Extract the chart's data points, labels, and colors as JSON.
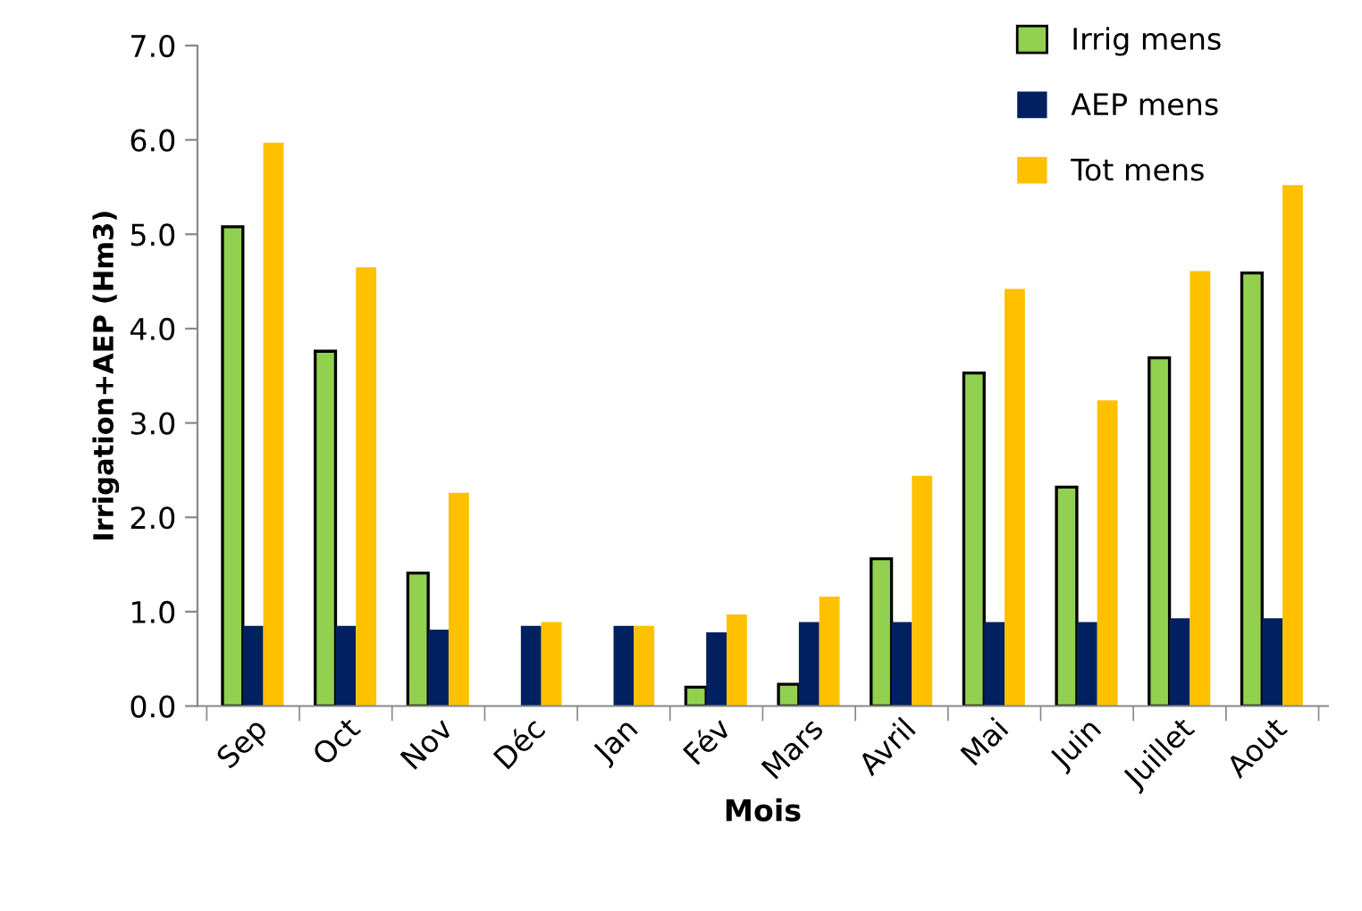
{
  "chart_data": {
    "type": "bar",
    "xlabel": "Mois",
    "ylabel": "Irrigation+AEP (Hm3)",
    "categories": [
      "Sep",
      "Oct",
      "Nov",
      "Déc",
      "Jan",
      "Fév",
      "Mars",
      "Avril",
      "Mai",
      "Juin",
      "Juillet",
      "Aout"
    ],
    "series": [
      {
        "name": "Irrig mens",
        "color": "#92d050",
        "values": [
          5.08,
          3.76,
          1.41,
          0,
          0,
          0.2,
          0.23,
          1.56,
          3.53,
          2.32,
          3.69,
          4.59
        ]
      },
      {
        "name": "AEP mens",
        "color": "#002060",
        "values": [
          0.85,
          0.85,
          0.81,
          0.85,
          0.85,
          0.78,
          0.89,
          0.89,
          0.89,
          0.89,
          0.93,
          0.93
        ]
      },
      {
        "name": "Tot mens",
        "color": "#ffc000",
        "values": [
          5.97,
          4.65,
          2.26,
          0.89,
          0.85,
          0.97,
          1.16,
          2.44,
          4.42,
          3.24,
          4.61,
          5.52
        ]
      }
    ],
    "ylim": [
      0,
      7
    ],
    "yticks": [
      {
        "value": 0,
        "label": "0.0"
      },
      {
        "value": 1,
        "label": "1.0"
      },
      {
        "value": 2,
        "label": "2.0"
      },
      {
        "value": 3,
        "label": "3.0"
      },
      {
        "value": 4,
        "label": "4.0"
      },
      {
        "value": 5,
        "label": "5.0"
      },
      {
        "value": 6,
        "label": "6.0"
      },
      {
        "value": 7,
        "label": "7.0"
      }
    ],
    "legend": "top right"
  }
}
